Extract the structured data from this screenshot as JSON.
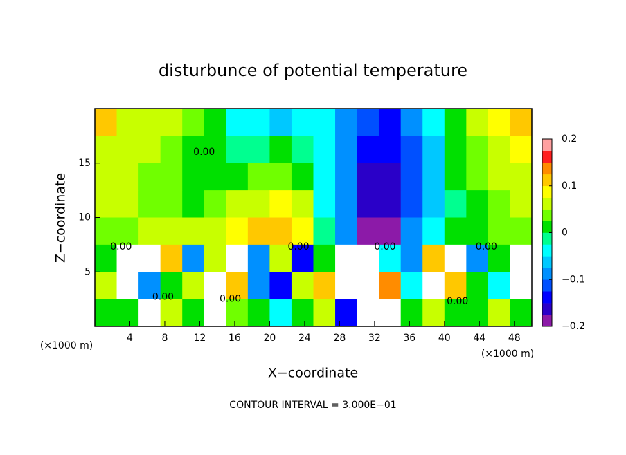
{
  "chart_data": {
    "type": "heatmap",
    "title": "disturbunce of potential temperature",
    "xlabel": "X−coordinate",
    "ylabel": "Z−coordinate",
    "x_unit_left": "(×1000 m)",
    "x_unit_right": "(×1000 m)",
    "footnote": "CONTOUR INTERVAL = 3.000E−01",
    "xlim": [
      0,
      50
    ],
    "ylim": [
      0,
      20
    ],
    "xticks": [
      4,
      8,
      12,
      16,
      20,
      24,
      28,
      32,
      36,
      40,
      44,
      48
    ],
    "yticks": [
      5,
      10,
      15
    ],
    "x": [
      1.25,
      3.75,
      6.25,
      8.75,
      11.25,
      13.75,
      16.25,
      18.75,
      21.25,
      23.75,
      26.25,
      28.75,
      31.25,
      33.75,
      36.25,
      38.75,
      41.25,
      43.75,
      46.25,
      48.75
    ],
    "y": [
      18.75,
      16.25,
      13.75,
      11.25,
      8.75,
      6.25,
      3.75,
      1.25
    ],
    "values": [
      [
        0.1,
        0.07,
        0.06,
        0.05,
        0.03,
        0.0,
        -0.03,
        -0.05,
        -0.06,
        -0.05,
        -0.04,
        -0.08,
        -0.12,
        -0.13,
        -0.1,
        -0.05,
        0.0,
        0.05,
        0.08,
        0.1
      ],
      [
        0.07,
        0.06,
        0.05,
        0.03,
        0.02,
        0.0,
        -0.02,
        -0.02,
        0.0,
        -0.02,
        -0.05,
        -0.1,
        -0.15,
        -0.15,
        -0.12,
        -0.06,
        0.0,
        0.04,
        0.07,
        0.08
      ],
      [
        0.06,
        0.05,
        0.04,
        0.03,
        0.01,
        0.01,
        0.02,
        0.03,
        0.04,
        0.02,
        -0.04,
        -0.1,
        -0.16,
        -0.16,
        -0.12,
        -0.06,
        0.0,
        0.03,
        0.05,
        0.06
      ],
      [
        0.05,
        0.05,
        0.04,
        0.03,
        0.02,
        0.03,
        0.05,
        0.07,
        0.08,
        0.05,
        -0.03,
        -0.1,
        -0.17,
        -0.17,
        -0.12,
        -0.06,
        -0.01,
        0.02,
        0.04,
        0.05
      ],
      [
        0.03,
        0.04,
        0.05,
        0.06,
        0.05,
        0.06,
        0.09,
        0.11,
        0.12,
        0.08,
        -0.02,
        -0.09,
        -0.19,
        -0.18,
        -0.1,
        -0.05,
        0.0,
        0.02,
        0.03,
        0.04
      ],
      [
        0.0,
        0.25,
        0.25,
        0.1,
        -0.1,
        0.05,
        0.25,
        -0.1,
        0.05,
        -0.15,
        0.0,
        0.25,
        0.25,
        -0.05,
        -0.1,
        0.1,
        0.25,
        -0.1,
        0.0,
        0.25
      ],
      [
        0.05,
        0.25,
        -0.1,
        0.0,
        0.05,
        0.25,
        0.1,
        -0.1,
        -0.15,
        0.05,
        0.1,
        0.25,
        0.25,
        0.15,
        -0.05,
        0.25,
        0.1,
        0.0,
        -0.05,
        0.25
      ],
      [
        0.0,
        0.02,
        0.25,
        0.05,
        0.0,
        0.25,
        0.03,
        0.0,
        -0.05,
        0.0,
        0.05,
        -0.15,
        0.25,
        0.25,
        0.0,
        0.05,
        0.02,
        0.0,
        0.05,
        0.0
      ]
    ],
    "clim": [
      -0.2,
      0.2
    ],
    "cticks": [
      {
        "value": -0.2,
        "label": "−0.2"
      },
      {
        "value": -0.1,
        "label": "−0.1"
      },
      0,
      0.1,
      0.2
    ],
    "colors": [
      "#8c1aa8",
      "#2a00c8",
      "#0000ff",
      "#0050ff",
      "#0090ff",
      "#00c8ff",
      "#00ffff",
      "#00ff90",
      "#00e000",
      "#70ff00",
      "#c8ff00",
      "#ffff00",
      "#ffc800",
      "#ff8c00",
      "#ff2020",
      "#ffa0a0"
    ],
    "over_color": "#ffffff",
    "contour_labels": [
      {
        "label": "0.00",
        "x": 12.5,
        "y": 16
      },
      {
        "label": "0.00",
        "x": 3,
        "y": 7.3
      },
      {
        "label": "0.00",
        "x": 23.3,
        "y": 7.3
      },
      {
        "label": "0.00",
        "x": 33.2,
        "y": 7.3
      },
      {
        "label": "0.00",
        "x": 44.8,
        "y": 7.3
      },
      {
        "label": "0.00",
        "x": 7.8,
        "y": 2.7
      },
      {
        "label": "0.00",
        "x": 15.5,
        "y": 2.5
      },
      {
        "label": "0.00",
        "x": 41.5,
        "y": 2.3
      }
    ]
  }
}
